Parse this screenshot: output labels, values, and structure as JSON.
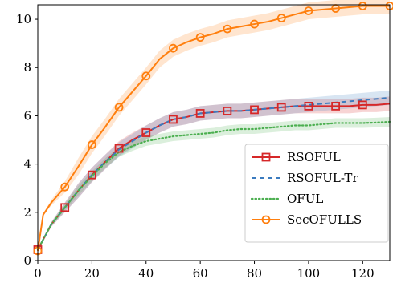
{
  "chart_data": {
    "type": "line",
    "title": "",
    "xlabel": "",
    "ylabel": "",
    "xlim": [
      0,
      130
    ],
    "ylim": [
      0,
      10.6
    ],
    "x_ticks": [
      0,
      20,
      40,
      60,
      80,
      100,
      120
    ],
    "y_ticks": [
      0,
      2,
      4,
      6,
      8,
      10
    ],
    "grid": false,
    "legend_position": "right",
    "series": [
      {
        "name": "RSOFUL",
        "color": "#d62728",
        "style": "solid",
        "marker": "square",
        "band": 0.3,
        "x": [
          0,
          5,
          10,
          15,
          20,
          25,
          30,
          35,
          40,
          45,
          50,
          55,
          60,
          65,
          70,
          75,
          80,
          85,
          90,
          95,
          100,
          105,
          110,
          115,
          120,
          125,
          130
        ],
        "y": [
          0.45,
          1.5,
          2.2,
          2.9,
          3.55,
          4.1,
          4.65,
          5.0,
          5.3,
          5.6,
          5.85,
          5.95,
          6.1,
          6.15,
          6.2,
          6.2,
          6.25,
          6.3,
          6.35,
          6.4,
          6.4,
          6.4,
          6.4,
          6.4,
          6.45,
          6.45,
          6.5
        ],
        "marker_x": [
          0,
          10,
          20,
          30,
          40,
          50,
          60,
          70,
          80,
          90,
          100,
          110,
          120
        ]
      },
      {
        "name": "RSOFUL-Tr",
        "color": "#3b7bbf",
        "style": "dashed",
        "marker": "none",
        "band": 0.3,
        "x": [
          0,
          5,
          10,
          15,
          20,
          25,
          30,
          35,
          40,
          45,
          50,
          55,
          60,
          65,
          70,
          75,
          80,
          85,
          90,
          95,
          100,
          105,
          110,
          115,
          120,
          125,
          130
        ],
        "y": [
          0.45,
          1.5,
          2.2,
          2.9,
          3.55,
          4.1,
          4.6,
          4.95,
          5.3,
          5.6,
          5.85,
          5.95,
          6.1,
          6.15,
          6.2,
          6.2,
          6.25,
          6.3,
          6.35,
          6.4,
          6.45,
          6.5,
          6.55,
          6.6,
          6.65,
          6.7,
          6.75
        ]
      },
      {
        "name": "OFUL",
        "color": "#4caf50",
        "style": "dotted",
        "marker": "none",
        "band": 0.2,
        "x": [
          0,
          5,
          10,
          15,
          20,
          25,
          30,
          35,
          40,
          45,
          50,
          55,
          60,
          65,
          70,
          75,
          80,
          85,
          90,
          95,
          100,
          105,
          110,
          115,
          120,
          125,
          130
        ],
        "y": [
          0.45,
          1.5,
          2.2,
          2.9,
          3.5,
          4.05,
          4.5,
          4.75,
          4.95,
          5.05,
          5.15,
          5.2,
          5.25,
          5.3,
          5.4,
          5.45,
          5.45,
          5.5,
          5.55,
          5.6,
          5.6,
          5.65,
          5.7,
          5.7,
          5.7,
          5.72,
          5.75
        ]
      },
      {
        "name": "SecOFULLS",
        "color": "#ff7f0e",
        "style": "solid",
        "marker": "circle",
        "band": 0.35,
        "x": [
          0,
          2,
          5,
          10,
          15,
          20,
          25,
          30,
          35,
          40,
          45,
          50,
          55,
          60,
          65,
          70,
          75,
          80,
          85,
          90,
          95,
          100,
          105,
          110,
          115,
          120,
          125,
          130
        ],
        "y": [
          0.4,
          1.9,
          2.4,
          3.05,
          3.9,
          4.8,
          5.55,
          6.35,
          7.0,
          7.65,
          8.35,
          8.8,
          9.05,
          9.25,
          9.4,
          9.6,
          9.7,
          9.8,
          9.9,
          10.05,
          10.2,
          10.35,
          10.4,
          10.45,
          10.5,
          10.55,
          10.55,
          10.55
        ],
        "marker_x": [
          0,
          10,
          20,
          30,
          40,
          50,
          60,
          70,
          80,
          90,
          100,
          110,
          120,
          130
        ]
      }
    ]
  }
}
